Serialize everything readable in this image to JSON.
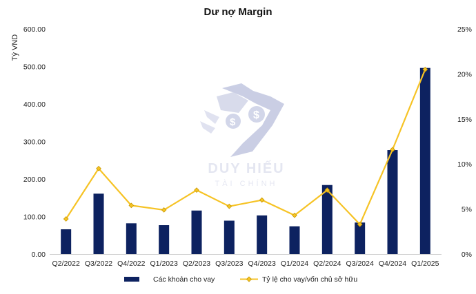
{
  "chart_data": {
    "type": "bar",
    "title": "Dư nợ Margin",
    "ylabel": "Tỷ VND",
    "ylim": [
      0,
      600
    ],
    "y2lim": [
      0,
      25
    ],
    "y_ticks": [
      "0.00",
      "100.00",
      "200.00",
      "300.00",
      "400.00",
      "500.00",
      "600.00"
    ],
    "y2_ticks": [
      "0%",
      "5%",
      "10%",
      "15%",
      "20%",
      "25%"
    ],
    "categories": [
      "Q2/2022",
      "Q3/2022",
      "Q4/2022",
      "Q1/2023",
      "Q2/2023",
      "Q3/2023",
      "Q4/2023",
      "Q1/2024",
      "Q2/2024",
      "Q3/2024",
      "Q4/2024",
      "Q1/2025"
    ],
    "series": [
      {
        "name": "Các khoản cho vay",
        "type": "bar",
        "axis": "left",
        "color": "#0d2260",
        "values": [
          66,
          161,
          82,
          77,
          116,
          89,
          103,
          74,
          184,
          84,
          277,
          496
        ]
      },
      {
        "name": "Tỷ lệ cho vay/vốn chủ sở hữu",
        "type": "line",
        "axis": "right",
        "color": "#f6c325",
        "values": [
          3.9,
          9.5,
          5.4,
          4.9,
          7.1,
          5.3,
          6.0,
          4.3,
          7.1,
          3.3,
          11.6,
          20.5
        ]
      }
    ],
    "grid": false,
    "legend_position": "bottom"
  },
  "watermark": {
    "brand": "DUY HIẾU",
    "sub": "TÀI CHÍNH",
    "icon": "dollar-shield-logo"
  }
}
